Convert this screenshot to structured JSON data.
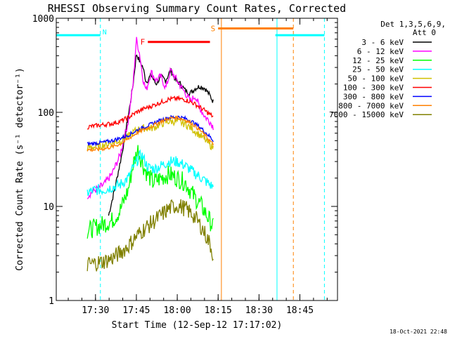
{
  "chart_data": {
    "type": "line",
    "title": "RHESSI Observing Summary Count Rates, Corrected",
    "xlabel": "Start Time (12-Sep-12 17:17:02)",
    "ylabel": "Corrected Count Rate (s⁻¹ detector⁻¹)",
    "y_scale": "log",
    "ylim": [
      1,
      1000
    ],
    "xlim": [
      17.26,
      18.98
    ],
    "x_ticks": [
      {
        "value": 17.5,
        "label": "17:30"
      },
      {
        "value": 17.75,
        "label": "17:45"
      },
      {
        "value": 18.0,
        "label": "18:00"
      },
      {
        "value": 18.25,
        "label": "18:15"
      },
      {
        "value": 18.5,
        "label": "18:30"
      },
      {
        "value": 18.75,
        "label": "18:45"
      }
    ],
    "y_ticks": [
      {
        "value": 1,
        "label": "1"
      },
      {
        "value": 10,
        "label": "10"
      },
      {
        "value": 100,
        "label": "100"
      },
      {
        "value": 1000,
        "label": "1000"
      }
    ],
    "legend_header": [
      "Det 1,3,5,6,9,",
      "Att 0"
    ],
    "legend_position": "right",
    "footer_date": "18-Oct-2021 22:48",
    "flags": [
      {
        "label": "N",
        "color": "#00ffff",
        "x": 17.53
      },
      {
        "label": "F",
        "color": "#ff0000",
        "x_start": 17.82,
        "x_end": 18.2,
        "y": 560
      },
      {
        "label": "S",
        "color": "#ff8000",
        "x_start": 18.25,
        "x_end": 18.71,
        "y": 780
      }
    ],
    "bars": [
      {
        "color": "#00ffff",
        "x_start": 17.26,
        "x_end": 17.53,
        "y": 660
      },
      {
        "color": "#00ffff",
        "x_start": 18.6,
        "x_end": 18.9,
        "y": 660
      }
    ],
    "vlines": [
      {
        "x": 17.26,
        "color": "#00ffff",
        "dash": false
      },
      {
        "x": 17.53,
        "color": "#00ffff",
        "dash": true
      },
      {
        "x": 18.27,
        "color": "#ff8000",
        "dash": false
      },
      {
        "x": 18.61,
        "color": "#00ffff",
        "dash": false
      },
      {
        "x": 18.71,
        "color": "#ff8000",
        "dash": true
      },
      {
        "x": 18.9,
        "color": "#00ffff",
        "dash": true
      }
    ],
    "series": [
      {
        "name": "3 - 6 keV",
        "color": "#000000",
        "noise": 0.03,
        "x": [
          17.58,
          17.62,
          17.66,
          17.7,
          17.73,
          17.75,
          17.77,
          17.79,
          17.81,
          17.84,
          17.87,
          17.9,
          17.93,
          17.96,
          17.99,
          18.02,
          18.05,
          18.08,
          18.11,
          18.14,
          18.17,
          18.2,
          18.22
        ],
        "y": [
          8,
          16,
          35,
          90,
          200,
          420,
          350,
          300,
          210,
          250,
          200,
          240,
          220,
          280,
          220,
          200,
          170,
          160,
          180,
          190,
          180,
          150,
          130
        ]
      },
      {
        "name": "6 - 12 keV",
        "color": "#ff00ff",
        "noise": 0.04,
        "x": [
          17.45,
          17.5,
          17.55,
          17.6,
          17.65,
          17.7,
          17.73,
          17.75,
          17.77,
          17.79,
          17.81,
          17.84,
          17.87,
          17.9,
          17.93,
          17.96,
          17.99,
          18.02,
          18.05,
          18.08,
          18.11,
          18.14,
          18.17,
          18.2,
          18.22
        ],
        "y": [
          13,
          15,
          17,
          22,
          35,
          80,
          200,
          600,
          420,
          230,
          170,
          270,
          220,
          240,
          180,
          280,
          230,
          190,
          160,
          130,
          150,
          110,
          90,
          80,
          70
        ]
      },
      {
        "name": "12 - 25 keV",
        "color": "#00ff00",
        "noise": 0.1,
        "x": [
          17.45,
          17.5,
          17.55,
          17.6,
          17.65,
          17.7,
          17.73,
          17.76,
          17.8,
          17.85,
          17.9,
          17.95,
          18.0,
          18.05,
          18.1,
          18.15,
          18.2,
          18.22
        ],
        "y": [
          5.5,
          6,
          6.5,
          7,
          9,
          15,
          28,
          40,
          25,
          18,
          20,
          22,
          20,
          18,
          13,
          10,
          7,
          6
        ]
      },
      {
        "name": "25 - 50 keV",
        "color": "#00ffff",
        "noise": 0.06,
        "x": [
          17.45,
          17.5,
          17.55,
          17.6,
          17.65,
          17.7,
          17.74,
          17.78,
          17.82,
          17.86,
          17.9,
          17.95,
          18.0,
          18.05,
          18.1,
          18.15,
          18.2,
          18.22
        ],
        "y": [
          14,
          15,
          15,
          16,
          17,
          20,
          28,
          36,
          26,
          25,
          27,
          30,
          30,
          27,
          23,
          20,
          17,
          16
        ]
      },
      {
        "name": "50 - 100 keV",
        "color": "#d0c000",
        "noise": 0.04,
        "x": [
          17.45,
          17.5,
          17.55,
          17.6,
          17.65,
          17.7,
          17.75,
          17.8,
          17.85,
          17.9,
          17.95,
          18.0,
          18.05,
          18.1,
          18.15,
          18.2,
          18.22
        ],
        "y": [
          42,
          43,
          45,
          47,
          50,
          55,
          65,
          68,
          68,
          75,
          80,
          80,
          75,
          65,
          55,
          45,
          42
        ]
      },
      {
        "name": "100 - 300 keV",
        "color": "#ff0000",
        "noise": 0.025,
        "x": [
          17.45,
          17.5,
          17.55,
          17.6,
          17.65,
          17.7,
          17.75,
          17.8,
          17.85,
          17.9,
          17.95,
          18.0,
          18.05,
          18.1,
          18.15,
          18.2,
          18.22
        ],
        "y": [
          70,
          72,
          74,
          76,
          80,
          88,
          100,
          110,
          118,
          128,
          138,
          140,
          136,
          125,
          110,
          95,
          90
        ]
      },
      {
        "name": "300 - 800 keV",
        "color": "#0000ff",
        "noise": 0.02,
        "x": [
          17.45,
          17.5,
          17.55,
          17.6,
          17.65,
          17.7,
          17.75,
          17.8,
          17.85,
          17.9,
          17.95,
          18.0,
          18.05,
          18.1,
          18.15,
          18.2,
          18.22
        ],
        "y": [
          46,
          47,
          48,
          50,
          53,
          57,
          64,
          70,
          76,
          83,
          88,
          90,
          86,
          78,
          67,
          55,
          50
        ]
      },
      {
        "name": "800 - 7000 keV",
        "color": "#ff8000",
        "noise": 0.02,
        "x": [
          17.45,
          17.5,
          17.55,
          17.6,
          17.65,
          17.7,
          17.75,
          17.8,
          17.85,
          17.9,
          17.95,
          18.0,
          18.05,
          18.1,
          18.15,
          18.2,
          18.22
        ],
        "y": [
          40,
          40,
          41,
          43,
          46,
          52,
          60,
          66,
          72,
          80,
          86,
          88,
          83,
          74,
          62,
          50,
          45
        ]
      },
      {
        "name": "7000 - 15000 keV",
        "color": "#808000",
        "noise": 0.09,
        "x": [
          17.45,
          17.5,
          17.55,
          17.6,
          17.65,
          17.7,
          17.75,
          17.8,
          17.85,
          17.9,
          17.95,
          18.0,
          18.05,
          18.1,
          18.15,
          18.2,
          18.22
        ],
        "y": [
          2.4,
          2.5,
          2.6,
          2.8,
          3.2,
          3.8,
          4.8,
          5.8,
          6.8,
          8,
          9.5,
          10.3,
          9.5,
          8,
          6,
          4,
          3
        ]
      }
    ]
  }
}
